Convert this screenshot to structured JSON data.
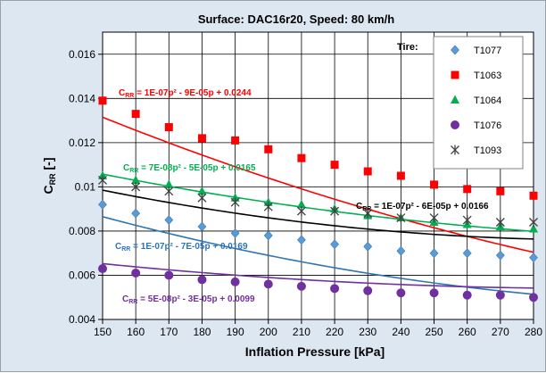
{
  "chart_data": {
    "type": "scatter",
    "title": "Surface: DAC16r20,   Speed: 80 km/h",
    "xlabel": "Inflation Pressure [kPa]",
    "ylabel": "C",
    "ylabel_sub": "RR",
    "ylabel_suffix": " [-]",
    "xlim": [
      150,
      280
    ],
    "ylim": [
      0.004,
      0.017
    ],
    "x_ticks": [
      "150",
      "160",
      "170",
      "180",
      "190",
      "200",
      "210",
      "220",
      "230",
      "240",
      "250",
      "260",
      "270",
      "280"
    ],
    "y_ticks": [
      "0.004",
      "0.006",
      "0.008",
      "0.01",
      "0.012",
      "0.014",
      "0.016"
    ],
    "grid": true,
    "legend_title": "Tire:",
    "legend_position": "top-right",
    "x": [
      150,
      160,
      170,
      180,
      190,
      200,
      210,
      220,
      230,
      240,
      250,
      260,
      270,
      280
    ],
    "series": [
      {
        "name": "T1077",
        "marker": "diamond",
        "color": "#5b9bd5",
        "line_color": "#2e75b6",
        "values": [
          0.0092,
          0.0088,
          0.0085,
          0.0082,
          0.0079,
          0.0078,
          0.0076,
          0.0074,
          0.0073,
          0.0071,
          0.007,
          0.007,
          0.0069,
          0.0068
        ],
        "fit": [
          1e-07,
          -7e-05,
          0.0169
        ],
        "equation": " = 1E-07p² - 7E-05p + 0.0169",
        "equation_color": "#2e75b6"
      },
      {
        "name": "T1063",
        "marker": "square",
        "color": "#ff0000",
        "line_color": "#ff0000",
        "values": [
          0.0139,
          0.0133,
          0.0127,
          0.0122,
          0.0121,
          0.0117,
          0.0113,
          0.011,
          0.0107,
          0.0105,
          0.0101,
          0.0099,
          0.0098,
          0.0096
        ],
        "fit": [
          1e-07,
          -9e-05,
          0.0244
        ],
        "equation": " = 1E-07p² - 9E-05p + 0.0244",
        "equation_color": "#ff0000"
      },
      {
        "name": "T1064",
        "marker": "triangle",
        "color": "#00b050",
        "line_color": "#00b050",
        "values": [
          0.0105,
          0.0103,
          0.0101,
          0.0098,
          0.0095,
          0.0093,
          0.0092,
          0.009,
          0.0087,
          0.0086,
          0.0084,
          0.0083,
          0.0082,
          0.0081
        ],
        "fit": [
          7e-08,
          -5e-05,
          0.0165
        ],
        "equation": " = 7E-08p² - 5E-05p + 0.0165",
        "equation_color": "#00b050"
      },
      {
        "name": "T1076",
        "marker": "circle",
        "color": "#7030a0",
        "line_color": "#7030a0",
        "values": [
          0.0063,
          0.0061,
          0.006,
          0.0058,
          0.0057,
          0.0056,
          0.0055,
          0.0054,
          0.0053,
          0.0052,
          0.0052,
          0.0051,
          0.0051,
          0.005
        ],
        "fit": [
          5e-08,
          -3e-05,
          0.0099
        ],
        "equation": " = 5E-08p² - 3E-05p + 0.0099",
        "equation_color": "#7030a0"
      },
      {
        "name": "T1093",
        "marker": "star",
        "color": "#404040",
        "line_color": "#000000",
        "values": [
          0.0103,
          0.01,
          0.0098,
          0.0095,
          0.0093,
          0.0091,
          0.0089,
          0.0089,
          0.0088,
          0.0086,
          0.0086,
          0.0085,
          0.0084,
          0.0084
        ],
        "fit": [
          1e-07,
          -6e-05,
          0.0166
        ],
        "equation": " = 1E-07p² - 6E-05p + 0.0166",
        "equation_color": "#000000"
      }
    ]
  }
}
